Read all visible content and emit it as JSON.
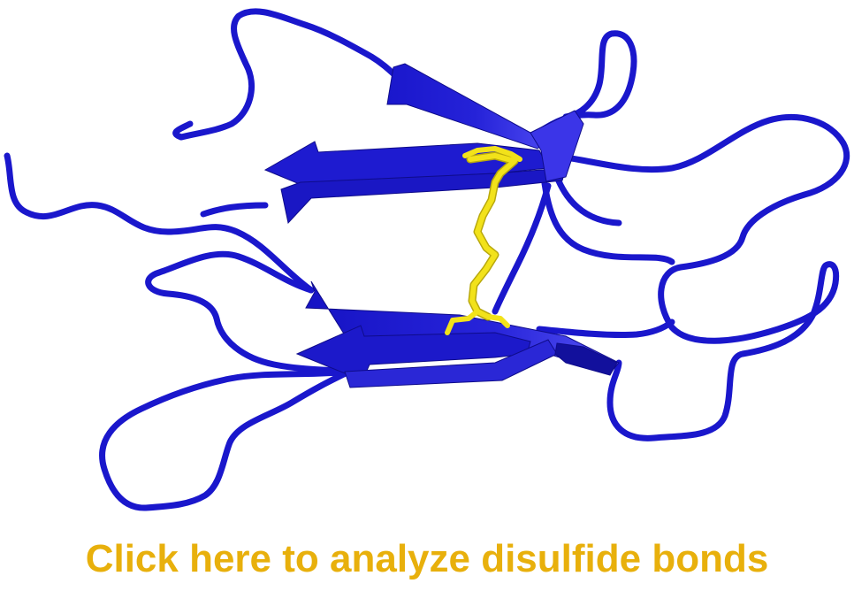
{
  "figure": {
    "ribbon_color": "#1a17cc",
    "ribbon_highlight": "#3b35e8",
    "ribbon_shadow": "#0f0c8a",
    "disulfide_color": "#f2e21a",
    "disulfide_shadow": "#b8a80c"
  },
  "link": {
    "label": "Click here to analyze disulfide bonds",
    "color": "#e8b00c"
  }
}
